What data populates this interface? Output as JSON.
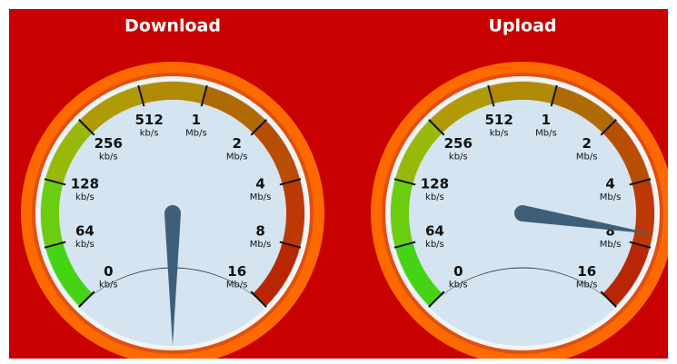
{
  "gauges": [
    {
      "title": "Download",
      "ticks": [
        {
          "value": "0",
          "unit": "kb/s"
        },
        {
          "value": "64",
          "unit": "kb/s"
        },
        {
          "value": "128",
          "unit": "kb/s"
        },
        {
          "value": "256",
          "unit": "kb/s"
        },
        {
          "value": "512",
          "unit": "kb/s"
        },
        {
          "value": "1",
          "unit": "Mb/s"
        },
        {
          "value": "2",
          "unit": "Mb/s"
        },
        {
          "value": "4",
          "unit": "Mb/s"
        },
        {
          "value": "8",
          "unit": "Mb/s"
        },
        {
          "value": "16",
          "unit": "Mb/s"
        }
      ]
    },
    {
      "title": "Upload",
      "ticks": [
        {
          "value": "0",
          "unit": "kb/s"
        },
        {
          "value": "64",
          "unit": "kb/s"
        },
        {
          "value": "128",
          "unit": "kb/s"
        },
        {
          "value": "256",
          "unit": "kb/s"
        },
        {
          "value": "512",
          "unit": "kb/s"
        },
        {
          "value": "1",
          "unit": "Mb/s"
        },
        {
          "value": "2",
          "unit": "Mb/s"
        },
        {
          "value": "4",
          "unit": "Mb/s"
        },
        {
          "value": "8",
          "unit": "Mb/s"
        },
        {
          "value": "16",
          "unit": "Mb/s"
        }
      ]
    }
  ]
}
